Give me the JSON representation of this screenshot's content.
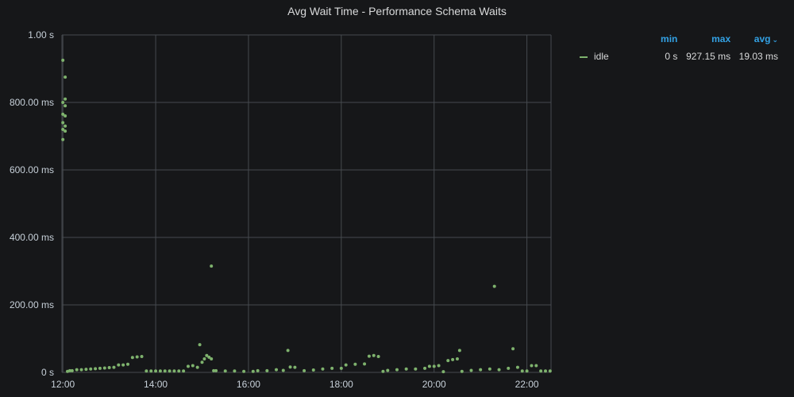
{
  "colors": {
    "series": "#7eb26d",
    "grid": "#464a4f",
    "accent": "#33a2e5",
    "background": "#161719"
  },
  "legend": {
    "headers": {
      "min": "min",
      "max": "max",
      "avg": "avg"
    },
    "sort_icon": "chevron-down-icon",
    "rows": [
      {
        "name": "idle",
        "min": "0 s",
        "max": "927.15 ms",
        "avg": "19.03 ms"
      }
    ]
  },
  "chart_data": {
    "type": "scatter",
    "title": "Avg Wait Time - Performance Schema Waits",
    "xlabel": "",
    "ylabel": "",
    "x_unit": "hours",
    "xlim": [
      11.98,
      22.52
    ],
    "ylim": [
      0,
      1000
    ],
    "x_ticks": [
      12,
      14,
      16,
      18,
      20,
      22
    ],
    "x_tick_labels": [
      "12:00",
      "14:00",
      "16:00",
      "18:00",
      "20:00",
      "22:00"
    ],
    "y_ticks": [
      0,
      200,
      400,
      600,
      800,
      1000
    ],
    "y_tick_labels": [
      "0 s",
      "200.00 ms",
      "400.00 ms",
      "600.00 ms",
      "800.00 ms",
      "1.00 s"
    ],
    "grid": true,
    "legend_position": "right",
    "series": [
      {
        "name": "idle",
        "points": [
          [
            12.0,
            800
          ],
          [
            12.0,
            765
          ],
          [
            12.0,
            740
          ],
          [
            12.0,
            720
          ],
          [
            12.0,
            690
          ],
          [
            12.0,
            925
          ],
          [
            12.05,
            875
          ],
          [
            12.05,
            810
          ],
          [
            12.05,
            790
          ],
          [
            12.05,
            760
          ],
          [
            12.05,
            730
          ],
          [
            12.05,
            715
          ],
          [
            12.1,
            3
          ],
          [
            12.15,
            5
          ],
          [
            12.2,
            5
          ],
          [
            12.3,
            8
          ],
          [
            12.4,
            8
          ],
          [
            12.5,
            9
          ],
          [
            12.6,
            10
          ],
          [
            12.7,
            11
          ],
          [
            12.8,
            12
          ],
          [
            12.9,
            13
          ],
          [
            13.0,
            14
          ],
          [
            13.1,
            15
          ],
          [
            13.2,
            22
          ],
          [
            13.3,
            22
          ],
          [
            13.4,
            24
          ],
          [
            13.5,
            44
          ],
          [
            13.6,
            46
          ],
          [
            13.7,
            47
          ],
          [
            13.8,
            4
          ],
          [
            13.9,
            4
          ],
          [
            14.0,
            4
          ],
          [
            14.1,
            4
          ],
          [
            14.2,
            4
          ],
          [
            14.3,
            4
          ],
          [
            14.4,
            4
          ],
          [
            14.5,
            4
          ],
          [
            14.6,
            4
          ],
          [
            14.7,
            18
          ],
          [
            14.8,
            20
          ],
          [
            14.9,
            15
          ],
          [
            14.95,
            82
          ],
          [
            15.0,
            30
          ],
          [
            15.05,
            40
          ],
          [
            15.1,
            50
          ],
          [
            15.15,
            45
          ],
          [
            15.2,
            40
          ],
          [
            15.2,
            315
          ],
          [
            15.25,
            5
          ],
          [
            15.3,
            5
          ],
          [
            15.5,
            4
          ],
          [
            15.7,
            4
          ],
          [
            15.9,
            3
          ],
          [
            16.1,
            3
          ],
          [
            16.2,
            5
          ],
          [
            16.4,
            5
          ],
          [
            16.6,
            8
          ],
          [
            16.75,
            6
          ],
          [
            16.85,
            65
          ],
          [
            16.9,
            16
          ],
          [
            17.0,
            15
          ],
          [
            17.2,
            5
          ],
          [
            17.4,
            7
          ],
          [
            17.6,
            10
          ],
          [
            17.8,
            12
          ],
          [
            18.0,
            12
          ],
          [
            18.1,
            22
          ],
          [
            18.3,
            24
          ],
          [
            18.5,
            25
          ],
          [
            18.6,
            48
          ],
          [
            18.7,
            50
          ],
          [
            18.8,
            47
          ],
          [
            18.9,
            3
          ],
          [
            19.0,
            6
          ],
          [
            19.2,
            8
          ],
          [
            19.4,
            10
          ],
          [
            19.6,
            10
          ],
          [
            19.8,
            12
          ],
          [
            19.9,
            18
          ],
          [
            20.0,
            18
          ],
          [
            20.1,
            20
          ],
          [
            20.2,
            2
          ],
          [
            20.3,
            35
          ],
          [
            20.4,
            38
          ],
          [
            20.5,
            40
          ],
          [
            20.55,
            65
          ],
          [
            20.6,
            3
          ],
          [
            20.8,
            6
          ],
          [
            21.0,
            8
          ],
          [
            21.2,
            10
          ],
          [
            21.3,
            255
          ],
          [
            21.4,
            8
          ],
          [
            21.6,
            12
          ],
          [
            21.7,
            70
          ],
          [
            21.8,
            15
          ],
          [
            21.9,
            4
          ],
          [
            22.0,
            4
          ],
          [
            22.1,
            20
          ],
          [
            22.2,
            20
          ],
          [
            22.3,
            4
          ],
          [
            22.4,
            4
          ],
          [
            22.5,
            4
          ]
        ]
      }
    ]
  }
}
